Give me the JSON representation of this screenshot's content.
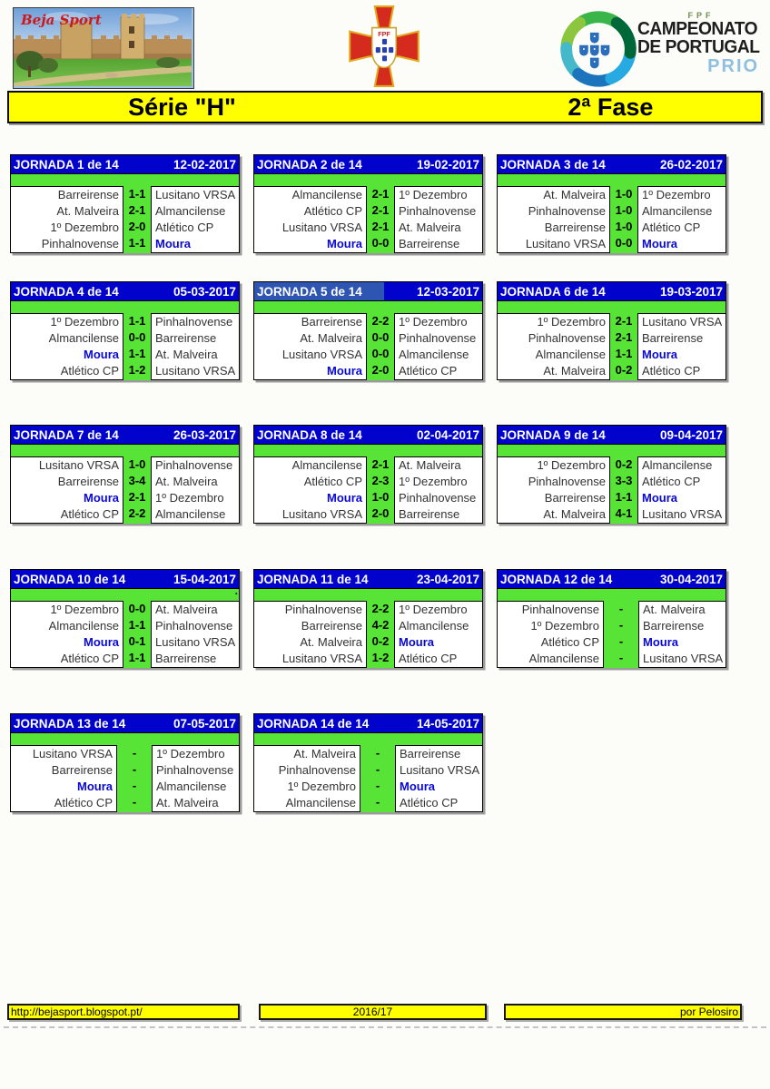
{
  "header": {
    "beja_caption": "Beja Sport",
    "crest_text": "FPF",
    "campeonato": {
      "fpf": "FPF",
      "line1": "CAMPEONATO",
      "line2": "DE PORTUGAL",
      "line3": "PRIO"
    }
  },
  "title_bar": {
    "serie": "Série \"H\"",
    "fase": "2ª Fase"
  },
  "colors": {
    "header_blue": "#0202CD",
    "selected_blue": "#2E55B2",
    "pitch_green": "#57E437",
    "banner_yellow": "#FFFF00",
    "moura_blue": "#0909D6",
    "prio_blue": "#8FC0DF",
    "crest_red": "#D42B1E"
  },
  "jornadas": [
    {
      "label": "JORNADA 1 de 14",
      "date": "12-02-2017",
      "matches": [
        {
          "home": "Barreirense",
          "score": "1-1",
          "away": "Lusitano VRSA"
        },
        {
          "home": "At. Malveira",
          "score": "2-1",
          "away": "Almancilense"
        },
        {
          "home": "1º Dezembro",
          "score": "2-0",
          "away": "Atlético CP"
        },
        {
          "home": "Pinhalnovense",
          "score": "1-1",
          "away": "Moura"
        }
      ]
    },
    {
      "label": "JORNADA 2 de 14",
      "date": "19-02-2017",
      "matches": [
        {
          "home": "Almancilense",
          "score": "2-1",
          "away": "1º Dezembro"
        },
        {
          "home": "Atlético CP",
          "score": "2-1",
          "away": "Pinhalnovense"
        },
        {
          "home": "Lusitano VRSA",
          "score": "2-1",
          "away": "At. Malveira"
        },
        {
          "home": "Moura",
          "score": "0-0",
          "away": "Barreirense"
        }
      ]
    },
    {
      "label": "JORNADA 3 de 14",
      "date": "26-02-2017",
      "matches": [
        {
          "home": "At. Malveira",
          "score": "1-0",
          "away": "1º Dezembro"
        },
        {
          "home": "Pinhalnovense",
          "score": "1-0",
          "away": "Almancilense"
        },
        {
          "home": "Barreirense",
          "score": "1-0",
          "away": "Atlético CP"
        },
        {
          "home": "Lusitano VRSA",
          "score": "0-0",
          "away": "Moura"
        }
      ]
    },
    {
      "label": "JORNADA 4 de 14",
      "date": "05-03-2017",
      "matches": [
        {
          "home": "1º Dezembro",
          "score": "1-1",
          "away": "Pinhalnovense"
        },
        {
          "home": "Almancilense",
          "score": "0-0",
          "away": "Barreirense"
        },
        {
          "home": "Moura",
          "score": "1-1",
          "away": "At. Malveira"
        },
        {
          "home": "Atlético CP",
          "score": "1-2",
          "away": "Lusitano VRSA"
        }
      ]
    },
    {
      "label": "JORNADA 5 de 14",
      "date": "12-03-2017",
      "selected": true,
      "matches": [
        {
          "home": "Barreirense",
          "score": "2-2",
          "away": "1º Dezembro"
        },
        {
          "home": "At. Malveira",
          "score": "0-0",
          "away": "Pinhalnovense"
        },
        {
          "home": "Lusitano VRSA",
          "score": "0-0",
          "away": "Almancilense"
        },
        {
          "home": "Moura",
          "score": "2-0",
          "away": "Atlético CP"
        }
      ]
    },
    {
      "label": "JORNADA 6 de 14",
      "date": "19-03-2017",
      "matches": [
        {
          "home": "1º Dezembro",
          "score": "2-1",
          "away": "Lusitano VRSA"
        },
        {
          "home": "Pinhalnovense",
          "score": "2-1",
          "away": "Barreirense"
        },
        {
          "home": "Almancilense",
          "score": "1-1",
          "away": "Moura"
        },
        {
          "home": "At. Malveira",
          "score": "0-2",
          "away": "Atlético CP"
        }
      ]
    },
    {
      "label": "JORNADA 7 de 14",
      "date": "26-03-2017",
      "matches": [
        {
          "home": "Lusitano VRSA",
          "score": "1-0",
          "away": "Pinhalnovense"
        },
        {
          "home": "Barreirense",
          "score": "3-4",
          "away": "At. Malveira"
        },
        {
          "home": "Moura",
          "score": "2-1",
          "away": "1º Dezembro"
        },
        {
          "home": "Atlético CP",
          "score": "2-2",
          "away": "Almancilense"
        }
      ]
    },
    {
      "label": "JORNADA 8 de 14",
      "date": "02-04-2017",
      "matches": [
        {
          "home": "Almancilense",
          "score": "2-1",
          "away": "At. Malveira"
        },
        {
          "home": "Atlético CP",
          "score": "2-3",
          "away": "1º Dezembro"
        },
        {
          "home": "Moura",
          "score": "1-0",
          "away": "Pinhalnovense"
        },
        {
          "home": "Lusitano VRSA",
          "score": "2-0",
          "away": "Barreirense"
        }
      ]
    },
    {
      "label": "JORNADA 9 de 14",
      "date": "09-04-2017",
      "matches": [
        {
          "home": "1º Dezembro",
          "score": "0-2",
          "away": "Almancilense"
        },
        {
          "home": "Pinhalnovense",
          "score": "3-3",
          "away": "Atlético CP"
        },
        {
          "home": "Barreirense",
          "score": "1-1",
          "away": "Moura"
        },
        {
          "home": "At. Malveira",
          "score": "4-1",
          "away": "Lusitano VRSA"
        }
      ]
    },
    {
      "label": "JORNADA 10 de 14",
      "date": "15-04-2017",
      "dot": ".",
      "matches": [
        {
          "home": "1º Dezembro",
          "score": "0-0",
          "away": "At. Malveira"
        },
        {
          "home": "Almancilense",
          "score": "1-1",
          "away": "Pinhalnovense"
        },
        {
          "home": "Moura",
          "score": "0-1",
          "away": "Lusitano VRSA"
        },
        {
          "home": "Atlético CP",
          "score": "1-1",
          "away": "Barreirense"
        }
      ]
    },
    {
      "label": "JORNADA 11 de 14",
      "date": "23-04-2017",
      "matches": [
        {
          "home": "Pinhalnovense",
          "score": "2-2",
          "away": "1º Dezembro"
        },
        {
          "home": "Barreirense",
          "score": "4-2",
          "away": "Almancilense"
        },
        {
          "home": "At. Malveira",
          "score": "0-2",
          "away": "Moura"
        },
        {
          "home": "Lusitano VRSA",
          "score": "1-2",
          "away": "Atlético CP"
        }
      ]
    },
    {
      "label": "JORNADA 12 de 14",
      "date": "30-04-2017",
      "matches": [
        {
          "home": "Pinhalnovense",
          "score": "-",
          "away": "At. Malveira"
        },
        {
          "home": "1º Dezembro",
          "score": "-",
          "away": "Barreirense"
        },
        {
          "home": "Atlético CP",
          "score": "-",
          "away": "Moura"
        },
        {
          "home": "Almancilense",
          "score": "-",
          "away": "Lusitano VRSA"
        }
      ]
    },
    {
      "label": "JORNADA 13 de 14",
      "date": "07-05-2017",
      "matches": [
        {
          "home": "Lusitano VRSA",
          "score": "-",
          "away": "1º Dezembro"
        },
        {
          "home": "Barreirense",
          "score": "-",
          "away": "Pinhalnovense"
        },
        {
          "home": "Moura",
          "score": "-",
          "away": "Almancilense"
        },
        {
          "home": "Atlético CP",
          "score": "-",
          "away": "At. Malveira"
        }
      ]
    },
    {
      "label": "JORNADA 14 de 14",
      "date": "14-05-2017",
      "matches": [
        {
          "home": "At. Malveira",
          "score": "-",
          "away": "Barreirense"
        },
        {
          "home": "Pinhalnovense",
          "score": "-",
          "away": "Lusitano VRSA"
        },
        {
          "home": "1º Dezembro",
          "score": "-",
          "away": "Moura"
        },
        {
          "home": "Almancilense",
          "score": "-",
          "away": "Atlético CP"
        }
      ]
    }
  ],
  "footer": {
    "left": "http://bejasport.blogspot.pt/",
    "center": "2016/17",
    "right": "por Pelosiro"
  }
}
